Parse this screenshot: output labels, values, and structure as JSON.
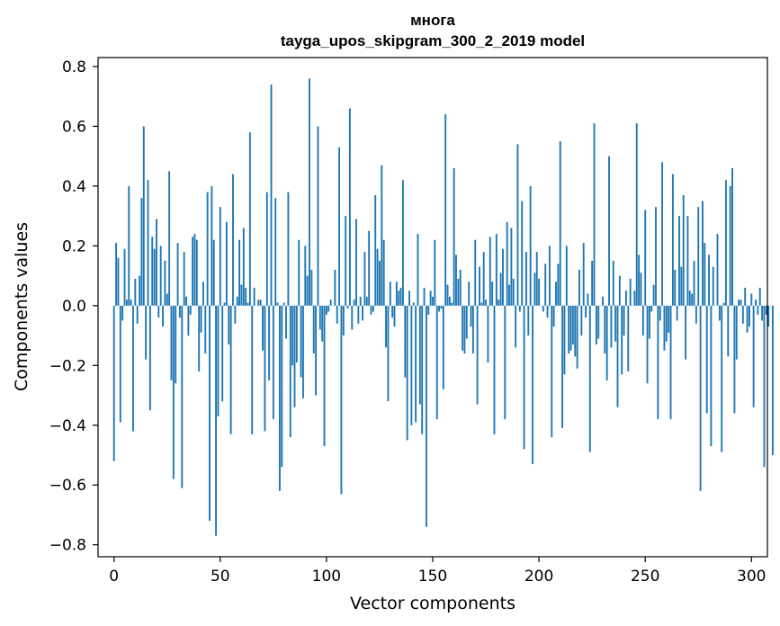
{
  "chart_data": {
    "type": "bar",
    "title": "многа",
    "subtitle": "tayga_upos_skipgram_300_2_2019 model",
    "xlabel": "Vector components",
    "ylabel": "Components values",
    "xlim": [
      -7.5,
      307.5
    ],
    "ylim": [
      -0.84,
      0.83
    ],
    "xticks": [
      0,
      50,
      100,
      150,
      200,
      250,
      300
    ],
    "xtick_labels": [
      "0",
      "50",
      "100",
      "150",
      "200",
      "250",
      "300"
    ],
    "yticks": [
      -0.8,
      -0.6,
      -0.4,
      -0.2,
      0.0,
      0.2,
      0.4,
      0.6,
      0.8
    ],
    "ytick_labels": [
      "−0.8",
      "−0.6",
      "−0.4",
      "−0.2",
      "0.0",
      "0.2",
      "0.4",
      "0.6",
      "0.8"
    ],
    "bar_color": "#1f77b4",
    "grid": false,
    "values": [
      -0.52,
      0.21,
      0.16,
      -0.39,
      -0.05,
      0.19,
      0.02,
      0.4,
      0.02,
      -0.42,
      0.09,
      -0.06,
      0.1,
      0.36,
      0.6,
      -0.18,
      0.42,
      -0.35,
      0.23,
      0.19,
      0.29,
      -0.04,
      0.2,
      -0.07,
      0.15,
      0.04,
      0.45,
      -0.25,
      -0.58,
      -0.26,
      0.21,
      -0.04,
      -0.61,
      0.18,
      0.03,
      -0.1,
      -0.03,
      0.23,
      0.24,
      0.22,
      -0.22,
      -0.09,
      0.08,
      -0.16,
      0.38,
      -0.72,
      0.4,
      0.22,
      -0.77,
      -0.37,
      0.33,
      -0.32,
      0.01,
      0.28,
      -0.13,
      -0.43,
      0.44,
      -0.06,
      0.03,
      0.22,
      0.07,
      0.26,
      0.06,
      0.01,
      0.58,
      -0.43,
      0.06,
      0.0,
      0.02,
      0.02,
      -0.15,
      -0.42,
      0.38,
      -0.25,
      0.74,
      -0.38,
      0.36,
      0.01,
      -0.62,
      -0.54,
      0.01,
      -0.11,
      0.38,
      -0.44,
      -0.2,
      -0.34,
      -0.19,
      0.22,
      -0.24,
      -0.31,
      0.2,
      0.1,
      0.76,
      0.12,
      -0.16,
      -0.3,
      0.6,
      -0.08,
      -0.12,
      -0.47,
      -0.03,
      -0.02,
      0.02,
      0.0,
      0.12,
      -0.06,
      0.53,
      -0.63,
      -0.1,
      0.3,
      -0.01,
      0.66,
      -0.08,
      0.02,
      0.29,
      -0.06,
      0.03,
      -0.05,
      0.18,
      0.03,
      0.25,
      -0.03,
      -0.02,
      0.37,
      0.19,
      0.15,
      0.47,
      0.22,
      -0.14,
      -0.32,
      0.08,
      -0.04,
      -0.07,
      0.08,
      0.05,
      0.06,
      0.42,
      -0.24,
      -0.45,
      0.05,
      -0.4,
      0.01,
      -0.39,
      0.24,
      -0.33,
      -0.43,
      0.06,
      -0.74,
      -0.03,
      0.05,
      0.03,
      0.22,
      -0.38,
      -0.02,
      -0.01,
      -0.28,
      0.64,
      0.07,
      0.03,
      0.01,
      0.46,
      0.17,
      0.09,
      0.12,
      -0.15,
      -0.16,
      -0.11,
      0.08,
      -0.07,
      -0.16,
      0.22,
      -0.33,
      0.13,
      0.01,
      0.18,
      0.02,
      -0.19,
      0.23,
      0.08,
      -0.43,
      0.24,
      0.02,
      0.11,
      0.19,
      -0.38,
      0.28,
      0.07,
      0.26,
      0.09,
      -0.14,
      0.54,
      -0.02,
      0.35,
      -0.48,
      0.18,
      -0.1,
      0.4,
      -0.53,
      0.11,
      0.18,
      0.09,
      0.0,
      -0.02,
      0.14,
      -0.04,
      0.2,
      -0.44,
      -0.07,
      0.08,
      0.14,
      0.55,
      -0.41,
      -0.23,
      0.2,
      -0.16,
      -0.15,
      -0.13,
      -0.17,
      -0.21,
      0.12,
      -0.1,
      0.21,
      -0.04,
      0.04,
      -0.49,
      0.15,
      0.61,
      -0.13,
      -0.11,
      0.0,
      0.03,
      -0.16,
      -0.25,
      0.5,
      -0.14,
      0.15,
      -0.12,
      -0.34,
      0.1,
      -0.23,
      -0.1,
      0.05,
      -0.22,
      0.09,
      0.0,
      0.05,
      0.61,
      0.17,
      0.11,
      -0.1,
      0.32,
      -0.26,
      -0.11,
      -0.02,
      0.07,
      0.33,
      -0.38,
      -0.05,
      0.48,
      -0.15,
      -0.12,
      -0.09,
      -0.38,
      0.44,
      0.12,
      -0.05,
      0.3,
      0.13,
      0.37,
      -0.18,
      0.3,
      0.05,
      0.04,
      0.15,
      -0.06,
      0.33,
      -0.62,
      0.35,
      0.21,
      -0.36,
      0.17,
      -0.47,
      0.13,
      0.0,
      0.24,
      -0.05,
      -0.49,
      0.01,
      0.42,
      -0.17,
      0.4,
      0.46,
      -0.36,
      -0.18,
      0.02,
      0.02,
      -0.06,
      0.06,
      -0.09,
      -0.07,
      0.04,
      -0.34,
      0.02,
      -0.03,
      0.06,
      -0.05,
      -0.54,
      -0.03,
      -0.07,
      0.0,
      -0.5
    ]
  }
}
